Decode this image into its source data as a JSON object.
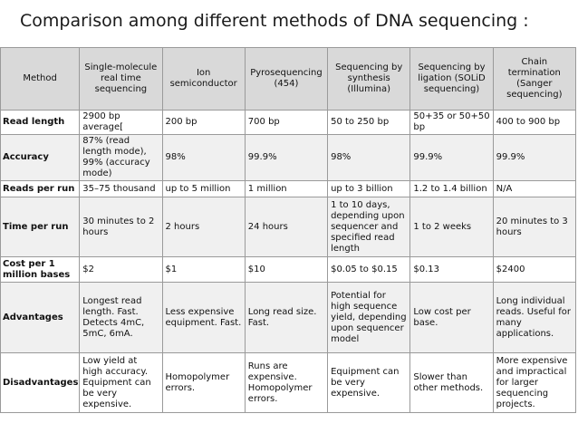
{
  "title": "Comparison among different methods of DNA sequencing :",
  "table": {
    "headers": [
      "Method",
      "Single-molecule real time sequencing",
      "Ion semiconductor",
      "Pyrosequencing (454)",
      "Sequencing by synthesis (Illumina)",
      "Sequencing by ligation (SOLiD sequencing)",
      "Chain termination (Sanger sequencing)"
    ],
    "rows": [
      {
        "label": "Read length",
        "cells": [
          "2900 bp average[",
          "200 bp",
          "700 bp",
          "50 to 250 bp",
          "50+35 or 50+50 bp",
          "400 to 900 bp"
        ]
      },
      {
        "label": "Accuracy",
        "cells": [
          "87% (read length mode), 99% (accuracy mode)",
          "98%",
          "99.9%",
          "98%",
          "99.9%",
          "99.9%"
        ]
      },
      {
        "label": "Reads per run",
        "cells": [
          "35–75 thousand",
          "up to 5 million",
          "1 million",
          "up to 3 billion",
          "1.2 to 1.4 billion",
          "N/A"
        ]
      },
      {
        "label": "Time per run",
        "cells": [
          "30 minutes to 2 hours",
          "2 hours",
          "24 hours",
          "1 to 10 days, depending upon sequencer and specified read length",
          "1 to 2 weeks",
          "20 minutes to 3 hours"
        ]
      },
      {
        "label": "Cost per 1 million bases",
        "cells": [
          "$2",
          "$1",
          "$10",
          "$0.05 to $0.15",
          "$0.13",
          "$2400"
        ]
      },
      {
        "label": "Advantages",
        "cells": [
          "Longest read length. Fast. Detects 4mC, 5mC, 6mA.",
          "Less expensive equipment. Fast.",
          "Long read size. Fast.",
          "Potential for high sequence yield, depending upon sequencer model",
          "Low cost per base.",
          "Long individual reads. Useful for many applications."
        ]
      },
      {
        "label": "Disadvantages",
        "cells": [
          "Low yield at high accuracy. Equipment can be very expensive.",
          "Homopolymer errors.",
          "Runs are expensive. Homopolymer errors.",
          "Equipment can be very expensive.",
          "Slower than other methods.",
          "More expensive and impractical for larger sequencing projects."
        ]
      }
    ]
  }
}
